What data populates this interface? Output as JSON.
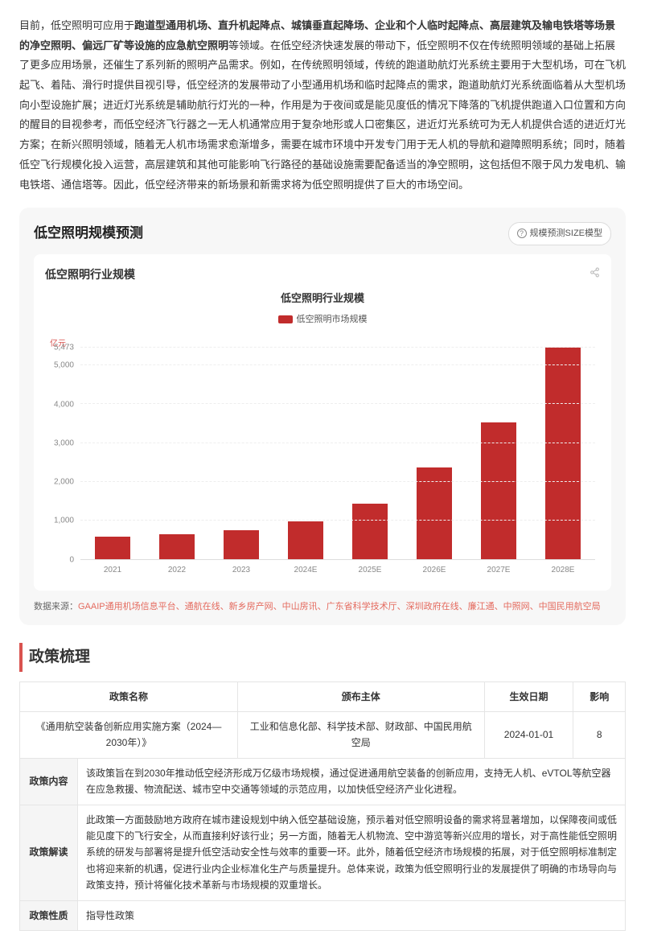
{
  "intro": {
    "pre": "目前，低空照明可应用于",
    "bold": "跑道型通用机场、直升机起降点、城镇垂直起降场、企业和个人临时起降点、高层建筑及输电铁塔等场景的净空照明、偏远厂矿等设施的应急航空照明",
    "post": "等领域。在低空经济快速发展的带动下，低空照明不仅在传统照明领域的基础上拓展了更多应用场景，还催生了系列新的照明产品需求。例如，在传统照明领域，传统的跑道助航灯光系统主要用于大型机场，可在飞机起飞、着陆、滑行时提供目视引导，低空经济的发展带动了小型通用机场和临时起降点的需求，跑道助航灯光系统面临着从大型机场向小型设施扩展；进近灯光系统是辅助航行灯光的一种，作用是为于夜间或是能见度低的情况下降落的飞机提供跑道入口位置和方向的醒目的目视参考，而低空经济飞行器之一无人机通常应用于复杂地形或人口密集区，进近灯光系统可为无人机提供合适的进近灯光方案；在新兴照明领域，随着无人机市场需求愈渐增多，需要在城市环境中开发专门用于无人机的导航和避障照明系统；同时，随着低空飞行规模化投入运营，高层建筑和其他可能影响飞行路径的基础设施需要配备适当的净空照明，这包括但不限于风力发电机、输电铁塔、通信塔等。因此，低空经济带来的新场景和新需求将为低空照明提供了巨大的市场空间。"
  },
  "forecast": {
    "panel_title": "低空照明规模预测",
    "badge": "规模预测SIZE模型",
    "chart_card_title": "低空照明行业规模",
    "chart_inner_title": "低空照明行业规模",
    "legend_label": "低空照明市场规模",
    "y_unit": "亿元",
    "chart": {
      "type": "bar",
      "categories": [
        "2021",
        "2022",
        "2023",
        "2024E",
        "2025E",
        "2026E",
        "2027E",
        "2028E"
      ],
      "values": [
        580,
        640,
        740,
        980,
        1420,
        2360,
        3540,
        5473
      ],
      "bar_color": "#c12c2c",
      "ymax": 5473,
      "yticks": [
        0,
        1000,
        2000,
        3000,
        4000,
        5000,
        5473
      ],
      "ytick_labels": [
        "0",
        "1,000",
        "2,000",
        "3,000",
        "4,000",
        "5,000",
        "5,473"
      ],
      "grid_color": "#eeeeee",
      "axis_label_color": "#888888",
      "background_color": "#ffffff"
    },
    "source_label": "数据来源：",
    "source_links": "GAAIP通用机场信息平台、通航在线、新乡房产网、中山房讯、广东省科学技术厅、深圳政府在线、廉江通、中照网、中国民用航空局"
  },
  "policy": {
    "section_title": "政策梳理",
    "headers": [
      "政策名称",
      "颁布主体",
      "生效日期",
      "影响"
    ],
    "row1": {
      "name": "《通用航空装备创新应用实施方案（2024—2030年）》",
      "issuer": "工业和信息化部、科学技术部、财政部、中国民用航空局",
      "date": "2024-01-01",
      "impact": "8"
    },
    "content_label": "政策内容",
    "content_text": "该政策旨在到2030年推动低空经济形成万亿级市场规模，通过促进通用航空装备的创新应用，支持无人机、eVTOL等航空器在应急救援、物流配送、城市空中交通等领域的示范应用，以加快低空经济产业化进程。",
    "interp_label": "政策解读",
    "interp_text": "此政策一方面鼓励地方政府在城市建设规划中纳入低空基础设施，预示着对低空照明设备的需求将显著增加，以保障夜间或低能见度下的飞行安全，从而直接利好该行业；另一方面，随着无人机物流、空中游览等新兴应用的增长，对于高性能低空照明系统的研发与部署将是提升低空活动安全性与效率的重要一环。此外，随着低空经济市场规模的拓展，对于低空照明标准制定也将迎来新的机遇，促进行业内企业标准化生产与质量提升。总体来说，政策为低空照明行业的发展提供了明确的市场导向与政策支持，预计将催化技术革新与市场规模的双重增长。",
    "nature_label": "政策性质",
    "nature_text": "指导性政策"
  }
}
